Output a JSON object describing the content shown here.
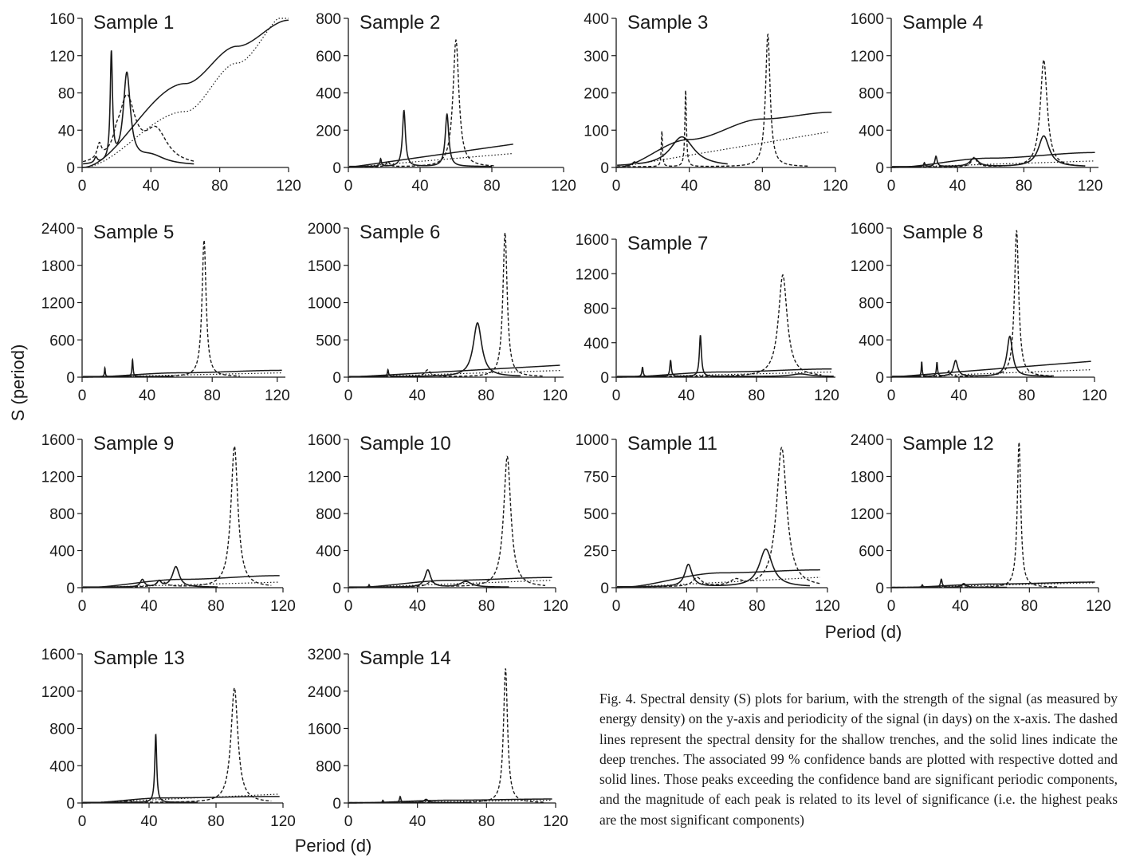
{
  "figure": {
    "ylabel": "S (period)",
    "xlabel": "Period (d)",
    "caption": "Fig. 4. Spectral density (S) plots for barium, with the strength of the signal (as measured by energy density) on the y-axis and periodicity of the signal (in days) on the x-axis. The dashed lines represent the spectral density for the shallow trenches, and the solid lines indicate the deep trenches. The associated 99 % confidence bands are plotted with respective dotted and solid lines. Those peaks exceeding the confidence band are significant periodic components, and the magnitude of each peak is related to its level of significance (i.e. the highest peaks are the most significant components)",
    "line_color": "#1a1a1a"
  },
  "chart_data": [
    {
      "type": "line",
      "title": "Sample 1",
      "xlim": [
        0,
        120
      ],
      "ylim": [
        0,
        160
      ],
      "xticks": [
        0,
        40,
        80,
        120
      ],
      "yticks": [
        0,
        40,
        80,
        120,
        160
      ],
      "deep_peaks": [
        [
          17,
          115,
          0.8
        ],
        [
          26,
          96,
          2.5
        ],
        [
          40,
          10,
          10
        ],
        [
          8,
          6,
          1
        ]
      ],
      "deep_base": 2,
      "shallow_peaks": [
        [
          26,
          70,
          6
        ],
        [
          43,
          35,
          8
        ],
        [
          10,
          15,
          1.5
        ],
        [
          20,
          8,
          2
        ]
      ],
      "shallow_base": 1,
      "deep_conf": {
        "kind": "sat",
        "v": [
          [
            0,
            0
          ],
          [
            60,
            90
          ],
          [
            90,
            130
          ],
          [
            120,
            158
          ]
        ]
      },
      "shallow_conf": {
        "kind": "sat",
        "v": [
          [
            0,
            0
          ],
          [
            60,
            60
          ],
          [
            90,
            112
          ],
          [
            120,
            166
          ]
        ]
      }
    },
    {
      "type": "line",
      "title": "Sample 2",
      "xlim": [
        0,
        120
      ],
      "ylim": [
        0,
        800
      ],
      "xticks": [
        0,
        40,
        80,
        120
      ],
      "yticks": [
        0,
        200,
        400,
        600,
        800
      ],
      "deep_peaks": [
        [
          31,
          300,
          1
        ],
        [
          55,
          280,
          1.2
        ],
        [
          18,
          40,
          0.5
        ]
      ],
      "deep_base": 5,
      "shallow_peaks": [
        [
          60,
          680,
          2
        ],
        [
          22,
          30,
          1
        ]
      ],
      "shallow_base": 3,
      "deep_conf": {
        "kind": "lin",
        "x": [
          0,
          92
        ],
        "y": [
          0,
          125
        ]
      },
      "shallow_conf": {
        "kind": "lin",
        "x": [
          0,
          92
        ],
        "y": [
          0,
          75
        ]
      }
    },
    {
      "type": "line",
      "title": "Sample 3",
      "xlim": [
        0,
        120
      ],
      "ylim": [
        0,
        400
      ],
      "xticks": [
        0,
        40,
        80,
        120
      ],
      "yticks": [
        0,
        100,
        200,
        300,
        400
      ],
      "deep_peaks": [
        [
          36,
          80,
          8
        ],
        [
          10,
          6,
          1
        ]
      ],
      "deep_base": 2,
      "shallow_peaks": [
        [
          83,
          355,
          1.5
        ],
        [
          38,
          205,
          0.5
        ],
        [
          25,
          95,
          0.4
        ]
      ],
      "shallow_base": 2,
      "deep_conf": {
        "kind": "sat",
        "v": [
          [
            0,
            0
          ],
          [
            40,
            75
          ],
          [
            80,
            130
          ],
          [
            118,
            148
          ]
        ]
      },
      "shallow_conf": {
        "kind": "lin",
        "x": [
          0,
          116
        ],
        "y": [
          0,
          95
        ]
      }
    },
    {
      "type": "line",
      "title": "Sample 4",
      "xlim": [
        0,
        125
      ],
      "ylim": [
        0,
        1600
      ],
      "xticks": [
        0,
        40,
        80,
        120
      ],
      "yticks": [
        0,
        400,
        800,
        1200,
        1600
      ],
      "deep_peaks": [
        [
          92,
          330,
          4
        ],
        [
          27,
          110,
          0.8
        ],
        [
          50,
          90,
          3
        ],
        [
          20,
          40,
          0.5
        ]
      ],
      "deep_base": 8,
      "shallow_peaks": [
        [
          92,
          1150,
          2.5
        ],
        [
          50,
          100,
          2
        ]
      ],
      "shallow_base": 4,
      "deep_conf": {
        "kind": "sat",
        "v": [
          [
            0,
            0
          ],
          [
            60,
            100
          ],
          [
            123,
            160
          ]
        ]
      },
      "shallow_conf": {
        "kind": "lin",
        "x": [
          0,
          123
        ],
        "y": [
          0,
          70
        ]
      }
    },
    {
      "type": "line",
      "title": "Sample 5",
      "xlim": [
        0,
        125
      ],
      "ylim": [
        0,
        2400
      ],
      "xticks": [
        0,
        40,
        80,
        120
      ],
      "yticks": [
        0,
        600,
        1200,
        1800,
        2400
      ],
      "deep_peaks": [
        [
          31,
          270,
          0.4
        ],
        [
          14,
          140,
          0.3
        ]
      ],
      "deep_base": 10,
      "shallow_peaks": [
        [
          75,
          2200,
          1.5
        ]
      ],
      "shallow_base": 8,
      "deep_conf": {
        "kind": "sat",
        "v": [
          [
            0,
            0
          ],
          [
            60,
            70
          ],
          [
            123,
            110
          ]
        ]
      },
      "shallow_conf": {
        "kind": "lin",
        "x": [
          0,
          123
        ],
        "y": [
          0,
          70
        ]
      }
    },
    {
      "type": "line",
      "title": "Sample 6",
      "xlim": [
        0,
        125
      ],
      "ylim": [
        0,
        2000
      ],
      "xticks": [
        0,
        40,
        80,
        120
      ],
      "yticks": [
        0,
        500,
        1000,
        1500,
        2000
      ],
      "deep_peaks": [
        [
          75,
          720,
          3
        ],
        [
          23,
          90,
          0.4
        ]
      ],
      "deep_base": 8,
      "shallow_peaks": [
        [
          91,
          1930,
          1.5
        ],
        [
          46,
          90,
          2
        ]
      ],
      "shallow_base": 6,
      "deep_conf": {
        "kind": "lin",
        "x": [
          0,
          123
        ],
        "y": [
          0,
          160
        ]
      },
      "shallow_conf": {
        "kind": "lin",
        "x": [
          0,
          123
        ],
        "y": [
          0,
          90
        ]
      }
    },
    {
      "type": "line",
      "title": "Sample 7",
      "xlim": [
        0,
        125
      ],
      "ylim": [
        0,
        1600
      ],
      "xticks": [
        0,
        40,
        80,
        120
      ],
      "yticks": [
        0,
        400,
        800,
        1200,
        1600
      ],
      "deep_peaks": [
        [
          48,
          480,
          0.7
        ],
        [
          31,
          190,
          0.5
        ],
        [
          15,
          110,
          0.4
        ],
        [
          105,
          30,
          6
        ]
      ],
      "deep_base": 8,
      "shallow_peaks": [
        [
          95,
          1180,
          3
        ]
      ],
      "shallow_base": 6,
      "deep_conf": {
        "kind": "sat",
        "v": [
          [
            0,
            0
          ],
          [
            60,
            60
          ],
          [
            123,
            95
          ]
        ]
      },
      "shallow_conf": {
        "kind": "lin",
        "x": [
          0,
          123
        ],
        "y": [
          0,
          60
        ]
      }
    },
    {
      "type": "line",
      "title": "Sample 8",
      "xlim": [
        0,
        120
      ],
      "ylim": [
        0,
        1600
      ],
      "xticks": [
        0,
        40,
        80,
        120
      ],
      "yticks": [
        0,
        400,
        800,
        1200,
        1600
      ],
      "deep_peaks": [
        [
          70,
          430,
          2
        ],
        [
          38,
          170,
          1.5
        ],
        [
          27,
          150,
          0.4
        ],
        [
          18,
          160,
          0.3
        ]
      ],
      "deep_base": 8,
      "shallow_peaks": [
        [
          74,
          1570,
          1.5
        ],
        [
          34,
          60,
          1
        ]
      ],
      "shallow_base": 6,
      "deep_conf": {
        "kind": "lin",
        "x": [
          0,
          118
        ],
        "y": [
          0,
          170
        ]
      },
      "shallow_conf": {
        "kind": "lin",
        "x": [
          0,
          118
        ],
        "y": [
          0,
          80
        ]
      }
    },
    {
      "type": "line",
      "title": "Sample 9",
      "xlim": [
        0,
        120
      ],
      "ylim": [
        0,
        1600
      ],
      "xticks": [
        0,
        40,
        80,
        120
      ],
      "yticks": [
        0,
        400,
        800,
        1200,
        1600
      ],
      "deep_peaks": [
        [
          56,
          220,
          2.5
        ],
        [
          36,
          80,
          1.5
        ],
        [
          46,
          60,
          1.5
        ]
      ],
      "deep_base": 6,
      "shallow_peaks": [
        [
          91,
          1520,
          2.5
        ],
        [
          47,
          70,
          3
        ]
      ],
      "shallow_base": 5,
      "deep_conf": {
        "kind": "sat",
        "v": [
          [
            0,
            0
          ],
          [
            60,
            90
          ],
          [
            118,
            130
          ]
        ]
      },
      "shallow_conf": {
        "kind": "lin",
        "x": [
          0,
          118
        ],
        "y": [
          0,
          60
        ]
      }
    },
    {
      "type": "line",
      "title": "Sample 10",
      "xlim": [
        0,
        120
      ],
      "ylim": [
        0,
        1600
      ],
      "xticks": [
        0,
        40,
        80,
        120
      ],
      "yticks": [
        0,
        400,
        800,
        1200,
        1600
      ],
      "deep_peaks": [
        [
          46,
          185,
          2
        ],
        [
          68,
          60,
          4
        ],
        [
          12,
          25,
          0.3
        ]
      ],
      "deep_base": 6,
      "shallow_peaks": [
        [
          92,
          1410,
          2.5
        ],
        [
          48,
          55,
          3
        ]
      ],
      "shallow_base": 5,
      "deep_conf": {
        "kind": "sat",
        "v": [
          [
            0,
            0
          ],
          [
            60,
            80
          ],
          [
            118,
            110
          ]
        ]
      },
      "shallow_conf": {
        "kind": "lin",
        "x": [
          0,
          118
        ],
        "y": [
          0,
          80
        ]
      }
    },
    {
      "type": "line",
      "title": "Sample 11",
      "xlim": [
        0,
        120
      ],
      "ylim": [
        0,
        1000
      ],
      "xticks": [
        0,
        40,
        80,
        120
      ],
      "yticks": [
        0,
        250,
        500,
        750,
        1000
      ],
      "deep_peaks": [
        [
          85,
          255,
          4.5
        ],
        [
          41,
          150,
          2.5
        ]
      ],
      "deep_base": 5,
      "shallow_peaks": [
        [
          94,
          940,
          3.5
        ],
        [
          46,
          60,
          3
        ],
        [
          68,
          40,
          4
        ]
      ],
      "shallow_base": 4,
      "deep_conf": {
        "kind": "sat",
        "v": [
          [
            0,
            0
          ],
          [
            60,
            100
          ],
          [
            116,
            120
          ]
        ]
      },
      "shallow_conf": {
        "kind": "lin",
        "x": [
          0,
          116
        ],
        "y": [
          0,
          70
        ]
      }
    },
    {
      "type": "line",
      "title": "Sample 12",
      "xlim": [
        0,
        120
      ],
      "ylim": [
        0,
        2400
      ],
      "xticks": [
        0,
        40,
        80,
        120
      ],
      "yticks": [
        0,
        600,
        1200,
        1800,
        2400
      ],
      "deep_peaks": [
        [
          29,
          130,
          0.6
        ],
        [
          42,
          60,
          1.5
        ],
        [
          18,
          40,
          0.4
        ]
      ],
      "deep_base": 6,
      "shallow_peaks": [
        [
          74,
          2350,
          1.2
        ]
      ],
      "shallow_base": 5,
      "deep_conf": {
        "kind": "sat",
        "v": [
          [
            0,
            0
          ],
          [
            60,
            60
          ],
          [
            118,
            90
          ]
        ]
      },
      "shallow_conf": {
        "kind": "lin",
        "x": [
          0,
          118
        ],
        "y": [
          0,
          80
        ]
      }
    },
    {
      "type": "line",
      "title": "Sample 13",
      "xlim": [
        0,
        120
      ],
      "ylim": [
        0,
        1600
      ],
      "xticks": [
        0,
        40,
        80,
        120
      ],
      "yticks": [
        0,
        400,
        800,
        1200,
        1600
      ],
      "deep_peaks": [
        [
          44,
          730,
          0.7
        ]
      ],
      "deep_base": 6,
      "shallow_peaks": [
        [
          91,
          1230,
          2.5
        ],
        [
          28,
          20,
          2
        ]
      ],
      "shallow_base": 5,
      "deep_conf": {
        "kind": "sat",
        "v": [
          [
            0,
            0
          ],
          [
            50,
            55
          ],
          [
            118,
            70
          ]
        ]
      },
      "shallow_conf": {
        "kind": "lin",
        "x": [
          0,
          118
        ],
        "y": [
          0,
          95
        ]
      }
    },
    {
      "type": "line",
      "title": "Sample 14",
      "xlim": [
        0,
        120
      ],
      "ylim": [
        0,
        3200
      ],
      "xticks": [
        0,
        40,
        80,
        120
      ],
      "yticks": [
        0,
        800,
        1600,
        2400,
        3200
      ],
      "deep_peaks": [
        [
          30,
          130,
          0.5
        ],
        [
          45,
          70,
          1.5
        ],
        [
          20,
          50,
          0.3
        ]
      ],
      "deep_base": 8,
      "shallow_peaks": [
        [
          91,
          2880,
          1.4
        ]
      ],
      "shallow_base": 6,
      "deep_conf": {
        "kind": "sat",
        "v": [
          [
            0,
            0
          ],
          [
            60,
            60
          ],
          [
            118,
            85
          ]
        ]
      },
      "shallow_conf": {
        "kind": "lin",
        "x": [
          0,
          118
        ],
        "y": [
          0,
          60
        ]
      }
    }
  ]
}
